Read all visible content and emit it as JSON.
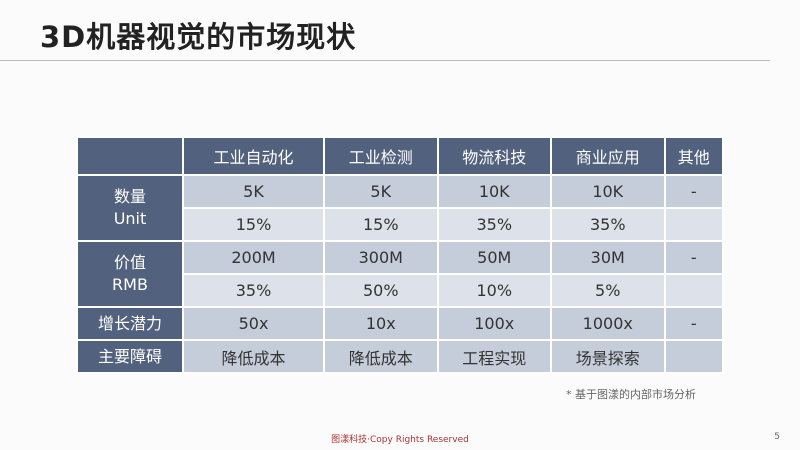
{
  "header": {
    "title": "3D机器视觉的市场现状"
  },
  "table": {
    "columns": [
      "工业自动化",
      "工业检测",
      "物流科技",
      "商业应用",
      "其他"
    ],
    "groups": [
      {
        "label": [
          "数量",
          "Unit"
        ],
        "rows": [
          [
            "5K",
            "5K",
            "10K",
            "10K",
            "-"
          ],
          [
            "15%",
            "15%",
            "35%",
            "35%",
            null
          ]
        ]
      },
      {
        "label": [
          "价值",
          "RMB"
        ],
        "rows": [
          [
            "200M",
            "300M",
            "50M",
            "30M",
            "-"
          ],
          [
            "35%",
            "50%",
            "10%",
            "5%",
            null
          ]
        ]
      },
      {
        "label": [
          "增长潜力"
        ],
        "rows": [
          [
            "50x",
            "10x",
            "100x",
            "1000x",
            "-"
          ]
        ]
      },
      {
        "label": [
          "主要障碍"
        ],
        "rows": [
          [
            "降低成本",
            "降低成本",
            "工程实现",
            "场景探索",
            null
          ]
        ]
      }
    ]
  },
  "note": "* 基于图漾的内部市场分析",
  "footer": {
    "copyright": "图漾科技·Copy Rights Reserved",
    "page": "5"
  }
}
